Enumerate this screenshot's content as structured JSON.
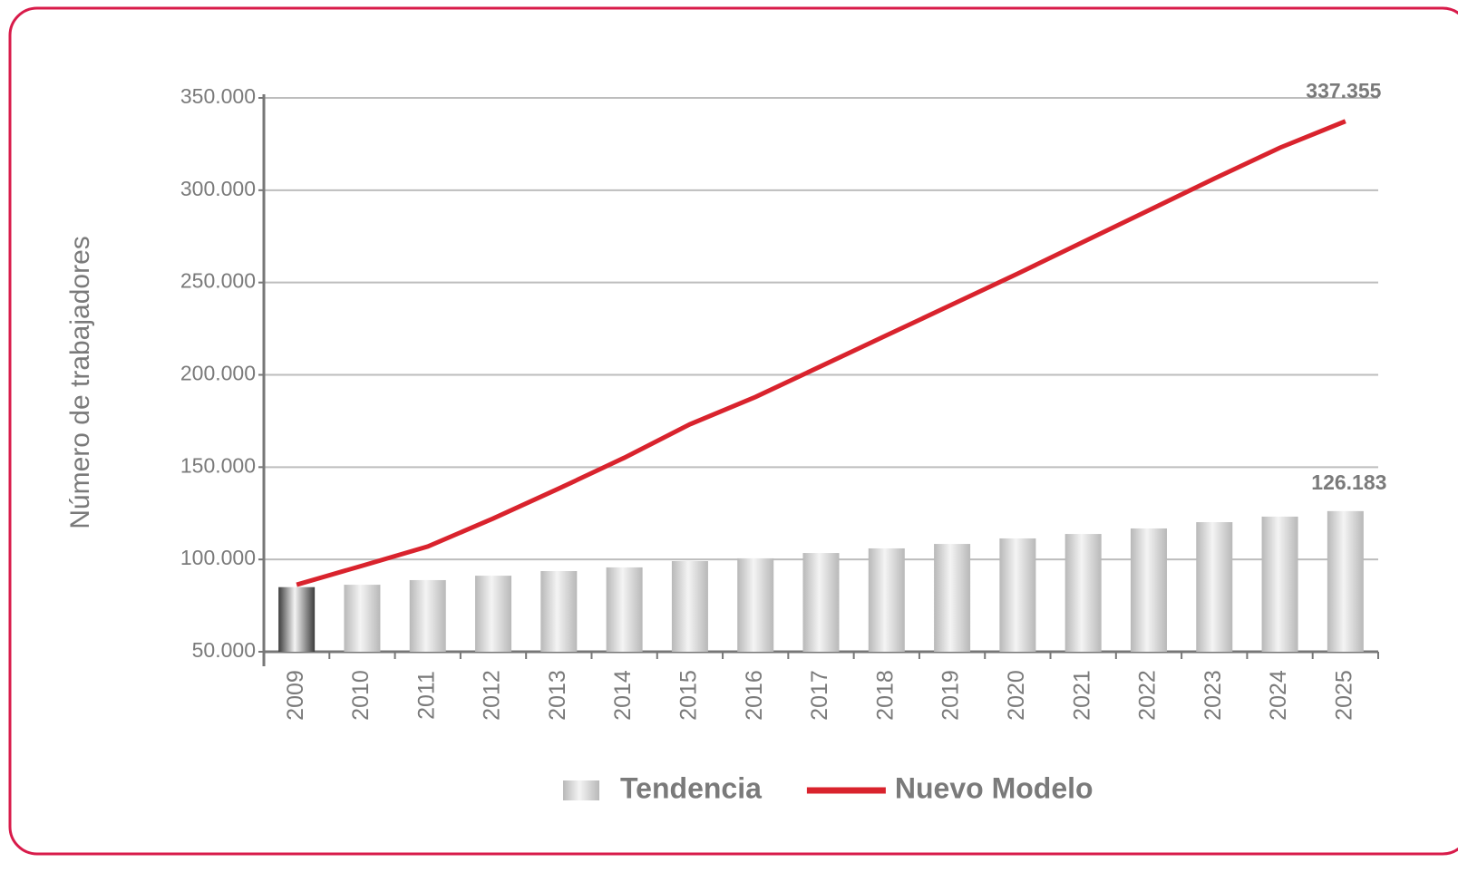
{
  "chart_data": {
    "type": "bar_line",
    "y_axis_label": "Número de trabajadores",
    "categories": [
      "2009",
      "2010",
      "2011",
      "2012",
      "2013",
      "2014",
      "2015",
      "2016",
      "2017",
      "2018",
      "2019",
      "2020",
      "2021",
      "2022",
      "2023",
      "2024",
      "2025"
    ],
    "ylim": [
      50000,
      350000
    ],
    "yticks": [
      {
        "value": 50000,
        "label": "50.000"
      },
      {
        "value": 100000,
        "label": "100.000"
      },
      {
        "value": 150000,
        "label": "150.000"
      },
      {
        "value": 200000,
        "label": "200.000"
      },
      {
        "value": 250000,
        "label": "250.000"
      },
      {
        "value": 300000,
        "label": "300.000"
      },
      {
        "value": 350000,
        "label": "350.000"
      }
    ],
    "grid": true,
    "legend": "bottom",
    "series": [
      {
        "name": "Tendencia",
        "kind": "bar",
        "color": "#b8b8b8",
        "colors": [
          "#3c3c3c",
          "#b8b8b8",
          "#b8b8b8",
          "#b8b8b8",
          "#b8b8b8",
          "#b8b8b8",
          "#b8b8b8",
          "#b8b8b8",
          "#b8b8b8",
          "#b8b8b8",
          "#b8b8b8",
          "#b8b8b8",
          "#b8b8b8",
          "#b8b8b8",
          "#b8b8b8",
          "#b8b8b8",
          "#b8b8b8"
        ],
        "values": [
          85000,
          86300,
          88800,
          91200,
          93700,
          95700,
          99100,
          100600,
          103500,
          106000,
          108400,
          111400,
          113800,
          116800,
          120200,
          123200,
          126183
        ],
        "value_labels": [
          null,
          null,
          null,
          null,
          null,
          null,
          null,
          null,
          null,
          null,
          null,
          null,
          null,
          null,
          null,
          null,
          "126.183"
        ]
      },
      {
        "name": "Nuevo Modelo",
        "kind": "line",
        "color": "#d9232d",
        "values": [
          86300,
          96600,
          107000,
          122200,
          138400,
          155100,
          173200,
          188000,
          204700,
          221400,
          238100,
          254800,
          272000,
          289100,
          306300,
          323000,
          337355
        ],
        "value_labels": [
          null,
          null,
          null,
          null,
          null,
          null,
          null,
          null,
          null,
          null,
          null,
          null,
          null,
          null,
          null,
          null,
          "337.355"
        ]
      }
    ]
  }
}
